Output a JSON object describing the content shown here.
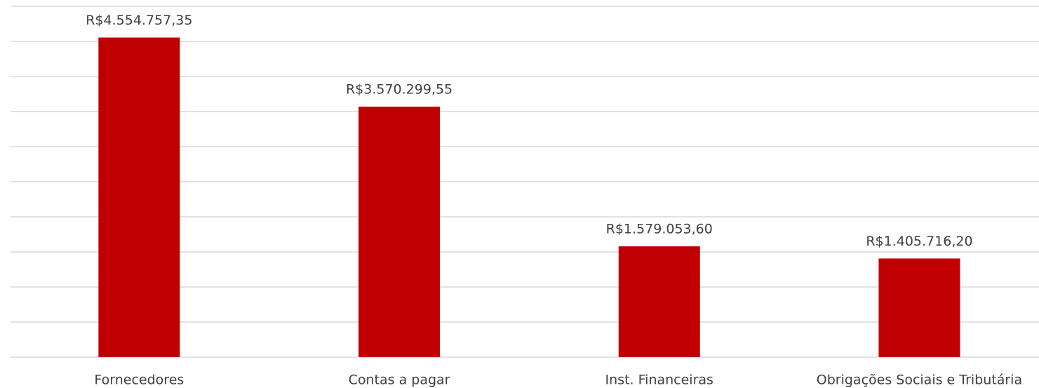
{
  "chart_data": {
    "type": "bar",
    "categories": [
      "Fornecedores",
      "Contas a pagar",
      "Inst. Financeiras",
      "Obrigações Sociais e Tributária"
    ],
    "values": [
      4554757.35,
      3570299.55,
      1579053.6,
      1405716.2
    ],
    "value_labels": [
      "R$4.554.757,35",
      "R$3.570.299,55",
      "R$1.579.053,60",
      "R$1.405.716,20"
    ],
    "color": "#c00000",
    "ylim": [
      0,
      5000000
    ],
    "yticks": [
      0,
      500000,
      1000000,
      1500000,
      2000000,
      2500000,
      3000000,
      3500000,
      4000000,
      4500000,
      5000000
    ],
    "grid": true
  }
}
